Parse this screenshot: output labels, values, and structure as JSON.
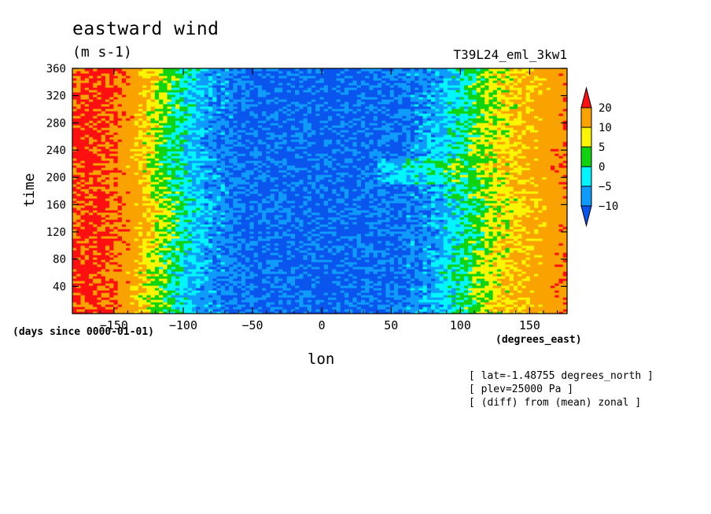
{
  "chart_data": {
    "type": "heatmap",
    "title": "eastward wind",
    "units": "(m s-1)",
    "experiment": "T39L24_eml_3kw1",
    "xlabel": "lon",
    "ylabel": "time",
    "x_units": "(degrees_east)",
    "y_units": "(days since 0000-01-01)",
    "xlim": [
      -180,
      177
    ],
    "ylim": [
      0,
      360
    ],
    "x_ticks": [
      -150,
      -100,
      -50,
      0,
      50,
      100,
      150
    ],
    "y_ticks": [
      40,
      80,
      120,
      160,
      200,
      240,
      280,
      320,
      360
    ],
    "colorbar": {
      "levels": [
        20,
        10,
        5,
        0,
        -5,
        -10
      ],
      "colors": [
        "#ff1010",
        "#f9a200",
        "#fbf500",
        "#10d410",
        "#00f5ff",
        "#0f9bfb",
        "#0a55ee"
      ]
    },
    "notes": [
      "[ lat=-1.48755 degrees_north ]",
      "[ plev=25000 Pa ]",
      "[ (diff) from (mean) zonal ]"
    ],
    "pattern": {
      "description_lon_profile": [
        {
          "lon": -180,
          "value": 22
        },
        {
          "lon": -160,
          "value": 22
        },
        {
          "lon": -140,
          "value": 16
        },
        {
          "lon": -120,
          "value": 6
        },
        {
          "lon": -100,
          "value": -2
        },
        {
          "lon": -80,
          "value": -8
        },
        {
          "lon": -50,
          "value": -11
        },
        {
          "lon": 0,
          "value": -12
        },
        {
          "lon": 50,
          "value": -11
        },
        {
          "lon": 80,
          "value": -7
        },
        {
          "lon": 100,
          "value": -1
        },
        {
          "lon": 120,
          "value": 6
        },
        {
          "lon": 150,
          "value": 12
        },
        {
          "lon": 177,
          "value": 18
        }
      ]
    }
  }
}
